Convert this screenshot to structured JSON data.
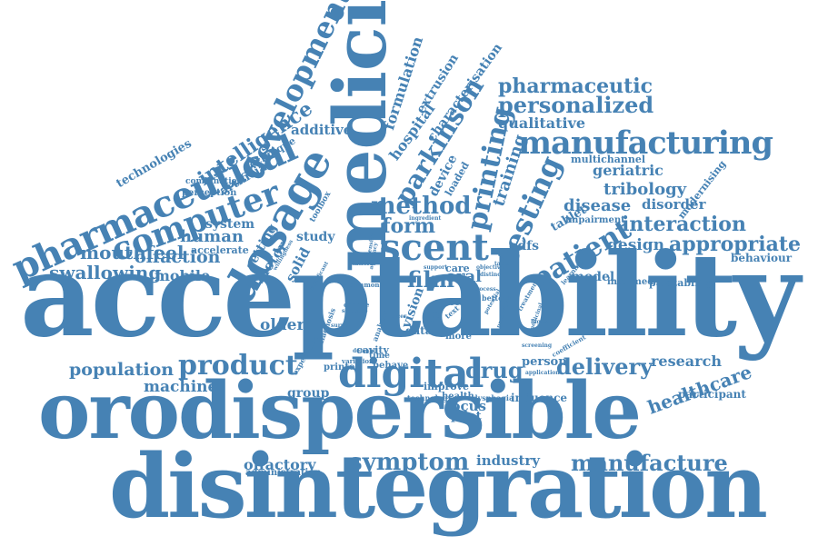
{
  "color": "#4682b4",
  "background": "#ffffff",
  "words": [
    "acceptability",
    "orodispersible",
    "disintegration",
    "medicine",
    "pharmaceutical",
    "manufacturing",
    "computer",
    "dosage",
    "scent",
    "digital",
    "development",
    "printing",
    "testing",
    "parkinson",
    "symptom",
    "product",
    "drug",
    "patient",
    "film",
    "method",
    "form",
    "manufacture",
    "delivery",
    "healthcare",
    "population",
    "appropriate",
    "interaction",
    "design",
    "personalized",
    "pharmaceutic",
    "intelligence",
    "swallowing",
    "mouthfeel",
    "olfaction",
    "human",
    "tribology",
    "disease",
    "machine",
    "older",
    "olfactory",
    "industry",
    "focus",
    "research",
    "formulation",
    "hospital",
    "characterisation",
    "extrusion",
    "additive",
    "technologies",
    "artificial",
    "technique",
    "qualitative",
    "geriatric",
    "disorder",
    "modernising",
    "multichannel",
    "impairment",
    "tablet",
    "system",
    "study",
    "mobile",
    "motor",
    "setting",
    "solid",
    "accelerate",
    "perception",
    "combination",
    "toolbox",
    "device",
    "loaded",
    "training",
    "odfs",
    "model",
    "informed",
    "palatability",
    "behaviour",
    "participant",
    "administration",
    "group",
    "vision",
    "oral",
    "pilot",
    "person",
    "improve",
    "influence",
    "cavity",
    "printed",
    "time",
    "data",
    "vitro",
    "more",
    "care",
    "tool",
    "health",
    "dysphagia",
    "technology",
    "variation",
    "behave",
    "experience",
    "diagnosis",
    "analysis",
    "change",
    "scenario",
    "common",
    "platform",
    "willingness",
    "significant",
    "ingredient",
    "support",
    "accuracy",
    "objective",
    "better",
    "distinct",
    "higher",
    "learning",
    "potential",
    "production",
    "treatment",
    "medicinal",
    "coefficient",
    "application",
    "text",
    "demand",
    "taste",
    "dimension",
    "ulcer",
    "process",
    "screening",
    "survey"
  ]
}
